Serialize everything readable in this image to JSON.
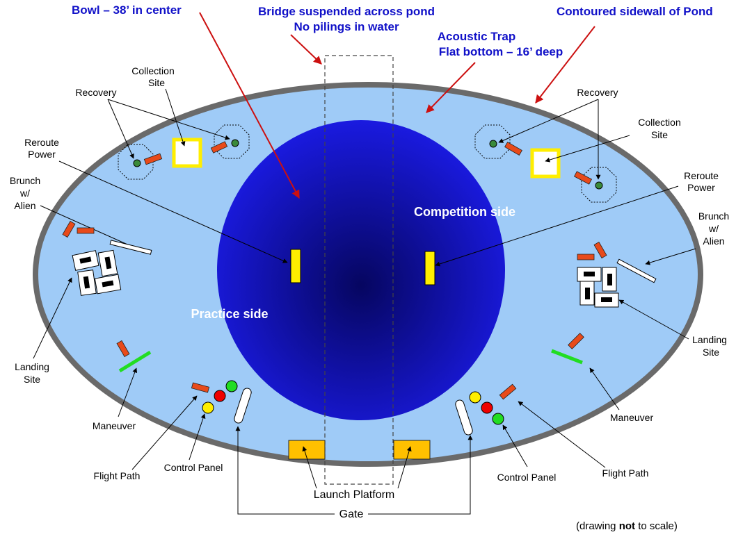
{
  "headers": {
    "bowl": "Bowl – 38’ in center",
    "bridge_line1": "Bridge suspended across pond",
    "bridge_line2": "No pilings in water",
    "trap_line1": "Acoustic Trap",
    "trap_line2": "Flat bottom – 16’ deep",
    "sidewall": "Contoured sidewall of Pond"
  },
  "sides": {
    "competition": "Competition side",
    "practice": "Practice side"
  },
  "left_labels": {
    "collection_1": "Collection",
    "collection_2": "Site",
    "recovery": "Recovery",
    "reroute_1": "Reroute",
    "reroute_2": "Power",
    "brunch_1": "Brunch",
    "brunch_2": "w/",
    "brunch_3": "Alien",
    "landing_1": "Landing",
    "landing_2": "Site",
    "maneuver": "Maneuver",
    "control_panel": "Control Panel",
    "flight_path": "Flight Path"
  },
  "right_labels": {
    "recovery": "Recovery",
    "collection_1": "Collection",
    "collection_2": "Site",
    "reroute_1": "Reroute",
    "reroute_2": "Power",
    "brunch_1": "Brunch",
    "brunch_2": "w/",
    "brunch_3": "Alien",
    "landing_1": "Landing",
    "landing_2": "Site",
    "maneuver": "Maneuver",
    "control_panel": "Control Panel",
    "flight_path": "Flight Path"
  },
  "bottom": {
    "launch_platform": "Launch Platform",
    "gate": "Gate",
    "note_prefix": "(drawing ",
    "note_bold": "not",
    "note_suffix": " to scale)"
  },
  "colors": {
    "header_blue": "#1010c8",
    "pond_light": "#9fcbf7",
    "pond_rim": "#6a6a6a",
    "bowl_dark": "#0a0a8a",
    "bowl_mid": "#1a1ae0",
    "arrow_red": "#cc1010",
    "orange_rect": "#e84a1a",
    "yellow": "#ffee00",
    "gold_platform": "#ffc000",
    "green": "#22dd22",
    "red": "#ee0000"
  }
}
